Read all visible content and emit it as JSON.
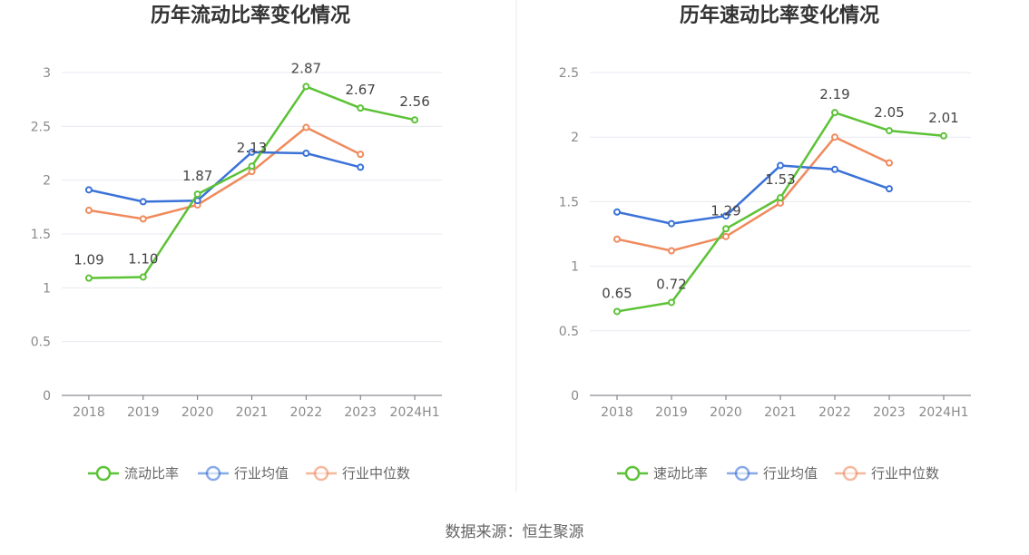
{
  "source": "数据来源：恒生聚源",
  "colors": {
    "primary": "#5cc236",
    "industry_avg": "#3a72d8",
    "industry_median": "#f08a5d"
  },
  "chart_data": [
    {
      "type": "line",
      "title": "历年流动比率变化情况",
      "categories": [
        "2018",
        "2019",
        "2020",
        "2021",
        "2022",
        "2023",
        "2024H1"
      ],
      "ylim": [
        0,
        3
      ],
      "yticks": [
        0,
        0.5,
        1,
        1.5,
        2,
        2.5,
        3
      ],
      "ytick_labels": [
        "0",
        "0.5",
        "1",
        "1.5",
        "2",
        "2.5",
        "3"
      ],
      "series": [
        {
          "name": "流动比率",
          "values": [
            1.09,
            1.1,
            1.87,
            2.13,
            2.87,
            2.67,
            2.56
          ],
          "labels": [
            "1.09",
            "1.10",
            "1.87",
            "2.13",
            "2.87",
            "2.67",
            "2.56"
          ]
        },
        {
          "name": "行业均值",
          "values": [
            1.91,
            1.8,
            1.81,
            2.26,
            2.25,
            2.12,
            null
          ]
        },
        {
          "name": "行业中位数",
          "values": [
            1.72,
            1.64,
            1.77,
            2.08,
            2.49,
            2.24,
            null
          ]
        }
      ]
    },
    {
      "type": "line",
      "title": "历年速动比率变化情况",
      "categories": [
        "2018",
        "2019",
        "2020",
        "2021",
        "2022",
        "2023",
        "2024H1"
      ],
      "ylim": [
        0,
        2.5
      ],
      "yticks": [
        0,
        0.5,
        1,
        1.5,
        2,
        2.5
      ],
      "ytick_labels": [
        "0",
        "0.5",
        "1",
        "1.5",
        "2",
        "2.5"
      ],
      "series": [
        {
          "name": "速动比率",
          "values": [
            0.65,
            0.72,
            1.29,
            1.53,
            2.19,
            2.05,
            2.01
          ],
          "labels": [
            "0.65",
            "0.72",
            "1.29",
            "1.53",
            "2.19",
            "2.05",
            "2.01"
          ]
        },
        {
          "name": "行业均值",
          "values": [
            1.42,
            1.33,
            1.39,
            1.78,
            1.75,
            1.6,
            null
          ]
        },
        {
          "name": "行业中位数",
          "values": [
            1.21,
            1.12,
            1.23,
            1.49,
            2.0,
            1.8,
            null
          ]
        }
      ]
    }
  ]
}
